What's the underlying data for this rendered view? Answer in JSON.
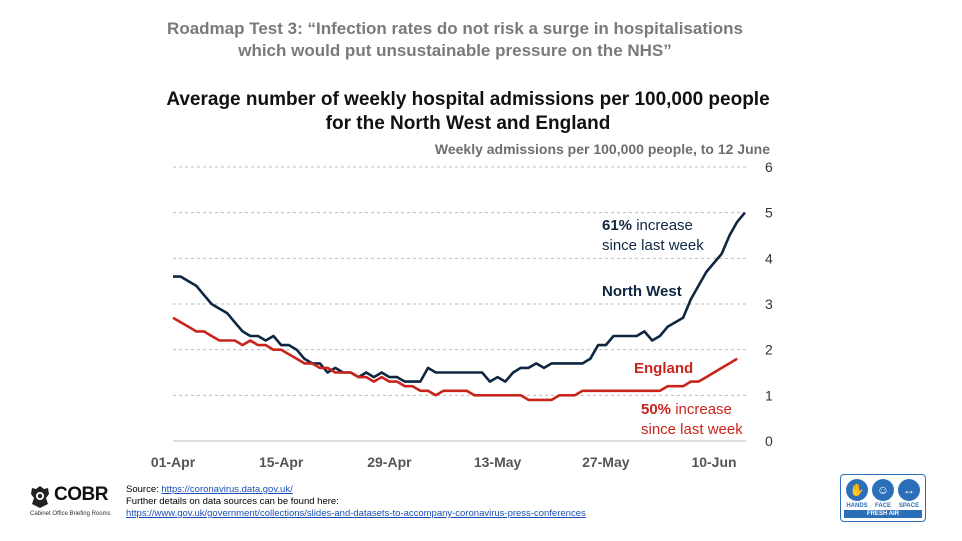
{
  "header": {
    "roadmap_title_line1": "Roadmap Test 3: “Infection rates do not risk a surge in hospitalisations",
    "roadmap_title_line2": "which would put unsustainable pressure on the NHS”"
  },
  "chart_data": {
    "type": "line",
    "title_line1": "Average number of weekly hospital admissions per 100,000 people",
    "title_line2": "for the North West and England",
    "subtitle": "Weekly admissions per 100,000 people, to 12 June",
    "ylim": [
      0,
      6
    ],
    "yticks": [
      "0",
      "1",
      "2",
      "3",
      "4",
      "5",
      "6"
    ],
    "x_start": "2021-04-01",
    "x_end": "2021-06-12",
    "xtick_labels": [
      {
        "label": "01-Apr",
        "date": "2021-04-01"
      },
      {
        "label": "15-Apr",
        "date": "2021-04-15"
      },
      {
        "label": "29-Apr",
        "date": "2021-04-29"
      },
      {
        "label": "13-May",
        "date": "2021-05-13"
      },
      {
        "label": "27-May",
        "date": "2021-05-27"
      },
      {
        "label": "10-Jun",
        "date": "2021-06-10"
      }
    ],
    "series": [
      {
        "name": "North West",
        "color": "#0f2640",
        "annotation_bold": "61%",
        "annotation_rest": " increase",
        "annotation_line2": "since last week",
        "points": [
          [
            "2021-04-01",
            3.6
          ],
          [
            "2021-04-02",
            3.6
          ],
          [
            "2021-04-03",
            3.5
          ],
          [
            "2021-04-04",
            3.4
          ],
          [
            "2021-04-05",
            3.2
          ],
          [
            "2021-04-06",
            3.0
          ],
          [
            "2021-04-07",
            2.9
          ],
          [
            "2021-04-08",
            2.8
          ],
          [
            "2021-04-09",
            2.6
          ],
          [
            "2021-04-10",
            2.4
          ],
          [
            "2021-04-11",
            2.3
          ],
          [
            "2021-04-12",
            2.3
          ],
          [
            "2021-04-13",
            2.2
          ],
          [
            "2021-04-14",
            2.3
          ],
          [
            "2021-04-15",
            2.1
          ],
          [
            "2021-04-16",
            2.1
          ],
          [
            "2021-04-17",
            2.0
          ],
          [
            "2021-04-18",
            1.8
          ],
          [
            "2021-04-19",
            1.7
          ],
          [
            "2021-04-20",
            1.7
          ],
          [
            "2021-04-21",
            1.5
          ],
          [
            "2021-04-22",
            1.6
          ],
          [
            "2021-04-23",
            1.5
          ],
          [
            "2021-04-24",
            1.5
          ],
          [
            "2021-04-25",
            1.4
          ],
          [
            "2021-04-26",
            1.5
          ],
          [
            "2021-04-27",
            1.4
          ],
          [
            "2021-04-28",
            1.5
          ],
          [
            "2021-04-29",
            1.4
          ],
          [
            "2021-04-30",
            1.4
          ],
          [
            "2021-05-01",
            1.3
          ],
          [
            "2021-05-02",
            1.3
          ],
          [
            "2021-05-03",
            1.3
          ],
          [
            "2021-05-04",
            1.6
          ],
          [
            "2021-05-05",
            1.5
          ],
          [
            "2021-05-06",
            1.5
          ],
          [
            "2021-05-07",
            1.5
          ],
          [
            "2021-05-08",
            1.5
          ],
          [
            "2021-05-09",
            1.5
          ],
          [
            "2021-05-10",
            1.5
          ],
          [
            "2021-05-11",
            1.5
          ],
          [
            "2021-05-12",
            1.3
          ],
          [
            "2021-05-13",
            1.4
          ],
          [
            "2021-05-14",
            1.3
          ],
          [
            "2021-05-15",
            1.5
          ],
          [
            "2021-05-16",
            1.6
          ],
          [
            "2021-05-17",
            1.6
          ],
          [
            "2021-05-18",
            1.7
          ],
          [
            "2021-05-19",
            1.6
          ],
          [
            "2021-05-20",
            1.7
          ],
          [
            "2021-05-21",
            1.7
          ],
          [
            "2021-05-22",
            1.7
          ],
          [
            "2021-05-23",
            1.7
          ],
          [
            "2021-05-24",
            1.7
          ],
          [
            "2021-05-25",
            1.8
          ],
          [
            "2021-05-26",
            2.1
          ],
          [
            "2021-05-27",
            2.1
          ],
          [
            "2021-05-28",
            2.3
          ],
          [
            "2021-05-29",
            2.3
          ],
          [
            "2021-05-30",
            2.3
          ],
          [
            "2021-05-31",
            2.3
          ],
          [
            "2021-06-01",
            2.4
          ],
          [
            "2021-06-02",
            2.2
          ],
          [
            "2021-06-03",
            2.3
          ],
          [
            "2021-06-04",
            2.5
          ],
          [
            "2021-06-05",
            2.6
          ],
          [
            "2021-06-06",
            2.7
          ],
          [
            "2021-06-07",
            3.1
          ],
          [
            "2021-06-08",
            3.4
          ],
          [
            "2021-06-09",
            3.7
          ],
          [
            "2021-06-10",
            3.9
          ],
          [
            "2021-06-11",
            4.1
          ],
          [
            "2021-06-12",
            4.5
          ],
          [
            "2021-06-13",
            4.8
          ],
          [
            "2021-06-14",
            5.0
          ]
        ]
      },
      {
        "name": "England",
        "color": "#c9241c",
        "annotation_bold": "50%",
        "annotation_rest": " increase",
        "annotation_line2": "since last week",
        "points": [
          [
            "2021-04-01",
            2.7
          ],
          [
            "2021-04-02",
            2.6
          ],
          [
            "2021-04-03",
            2.5
          ],
          [
            "2021-04-04",
            2.4
          ],
          [
            "2021-04-05",
            2.4
          ],
          [
            "2021-04-06",
            2.3
          ],
          [
            "2021-04-07",
            2.2
          ],
          [
            "2021-04-08",
            2.2
          ],
          [
            "2021-04-09",
            2.2
          ],
          [
            "2021-04-10",
            2.1
          ],
          [
            "2021-04-11",
            2.2
          ],
          [
            "2021-04-12",
            2.1
          ],
          [
            "2021-04-13",
            2.1
          ],
          [
            "2021-04-14",
            2.0
          ],
          [
            "2021-04-15",
            2.0
          ],
          [
            "2021-04-16",
            1.9
          ],
          [
            "2021-04-17",
            1.8
          ],
          [
            "2021-04-18",
            1.7
          ],
          [
            "2021-04-19",
            1.7
          ],
          [
            "2021-04-20",
            1.6
          ],
          [
            "2021-04-21",
            1.6
          ],
          [
            "2021-04-22",
            1.5
          ],
          [
            "2021-04-23",
            1.5
          ],
          [
            "2021-04-24",
            1.5
          ],
          [
            "2021-04-25",
            1.4
          ],
          [
            "2021-04-26",
            1.4
          ],
          [
            "2021-04-27",
            1.3
          ],
          [
            "2021-04-28",
            1.4
          ],
          [
            "2021-04-29",
            1.3
          ],
          [
            "2021-04-30",
            1.3
          ],
          [
            "2021-05-01",
            1.2
          ],
          [
            "2021-05-02",
            1.2
          ],
          [
            "2021-05-03",
            1.1
          ],
          [
            "2021-05-04",
            1.1
          ],
          [
            "2021-05-05",
            1.0
          ],
          [
            "2021-05-06",
            1.1
          ],
          [
            "2021-05-07",
            1.1
          ],
          [
            "2021-05-08",
            1.1
          ],
          [
            "2021-05-09",
            1.1
          ],
          [
            "2021-05-10",
            1.0
          ],
          [
            "2021-05-11",
            1.0
          ],
          [
            "2021-05-12",
            1.0
          ],
          [
            "2021-05-13",
            1.0
          ],
          [
            "2021-05-14",
            1.0
          ],
          [
            "2021-05-15",
            1.0
          ],
          [
            "2021-05-16",
            1.0
          ],
          [
            "2021-05-17",
            0.9
          ],
          [
            "2021-05-18",
            0.9
          ],
          [
            "2021-05-19",
            0.9
          ],
          [
            "2021-05-20",
            0.9
          ],
          [
            "2021-05-21",
            1.0
          ],
          [
            "2021-05-22",
            1.0
          ],
          [
            "2021-05-23",
            1.0
          ],
          [
            "2021-05-24",
            1.1
          ],
          [
            "2021-05-25",
            1.1
          ],
          [
            "2021-05-26",
            1.1
          ],
          [
            "2021-05-27",
            1.1
          ],
          [
            "2021-05-28",
            1.1
          ],
          [
            "2021-05-29",
            1.1
          ],
          [
            "2021-05-30",
            1.1
          ],
          [
            "2021-05-31",
            1.1
          ],
          [
            "2021-06-01",
            1.1
          ],
          [
            "2021-06-02",
            1.1
          ],
          [
            "2021-06-03",
            1.1
          ],
          [
            "2021-06-04",
            1.2
          ],
          [
            "2021-06-05",
            1.2
          ],
          [
            "2021-06-06",
            1.2
          ],
          [
            "2021-06-07",
            1.3
          ],
          [
            "2021-06-08",
            1.3
          ],
          [
            "2021-06-09",
            1.4
          ],
          [
            "2021-06-10",
            1.5
          ],
          [
            "2021-06-11",
            1.6
          ],
          [
            "2021-06-12",
            1.7
          ],
          [
            "2021-06-13",
            1.8
          ]
        ]
      }
    ]
  },
  "footer": {
    "source_label": "Source: ",
    "source_link": "https://coronavirus.data.gov.uk/",
    "details_text": "Further details on data sources can be found here:",
    "details_link": "https://www.gov.uk/government/collections/slides-and-datasets-to-accompany-coronavirus-press-conferences"
  },
  "logos": {
    "cobr_text": "COBR",
    "cobr_subtitle": "Cabinet Office Briefing Rooms",
    "hfs_hands": "HANDS",
    "hfs_face": "FACE",
    "hfs_space": "SPACE",
    "hfs_fresh_air": "FRESH AIR"
  }
}
